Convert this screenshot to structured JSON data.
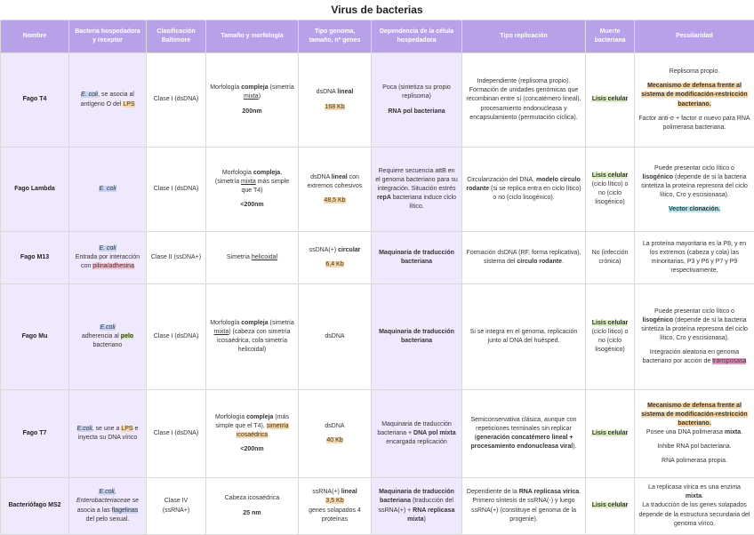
{
  "title": "Virus de bacterias",
  "headers": {
    "nombre": "Nombre",
    "bacteria": "Bacteria hospedadora y receptor",
    "clasificacion": "Clasificación Baltimore",
    "tamano": "Tamaño y morfología",
    "genoma": "Tipo genoma, tamaño, nº genes",
    "dependencia": "Dependencia de la célula hospedadora",
    "replicacion": "Tipo replicación",
    "muerte": "Muerte bacteriana",
    "peculiaridad": "Peculiaridad"
  },
  "t4": {
    "name": "Fago T4",
    "host_ecoli": "E. coli",
    "host_mid": ", se asocia al antígeno O del ",
    "host_lps": "LPS",
    "class": "Clase I (dsDNA)",
    "morph_a": "Morfología ",
    "morph_b": "compleja",
    "morph_c": " (simetría ",
    "morph_d": "mixta",
    "morph_e": ")",
    "size": "200nm",
    "genome_a": "dsDNA ",
    "genome_b": "lineal",
    "genome_size": "168 Kb",
    "dep_a": "Poca (sintetiza su propio replisoma)",
    "dep_b": "RNA pol bacteriana",
    "rep": "Independiente (replisoma propio). Formación de unidades genómicas que recombinan entre sí (concatémero lineal), procesamiento endonucleasa y encapsulamiento (permutación cíclica).",
    "death": "Lisis celular",
    "pec_a": "Replisoma propio.",
    "pec_b": "Mecanismo de defensa frente al sistema de modificación-restricción bacteriano.",
    "pec_c": "Factor anti-σ + factor σ nuevo para RNA polimerasa bacteriana."
  },
  "lambda": {
    "name": "Fago Lambda",
    "host_ecoli": "E. coli",
    "class": "Clase I (dsDNA)",
    "morph_a": "Morfología ",
    "morph_b": "compleja",
    "morph_c": ", (simetría ",
    "morph_d": "mixta",
    "morph_e": " más simple que T4)",
    "size": "<200nm",
    "genome_a": "dsDNA ",
    "genome_b": "lineal",
    "genome_c": " con extremos cohesivos",
    "genome_size": "48,5 Kb",
    "dep_a": "Requiere secuencia attB en el genoma bacteriano para su integración. Situación estrés ",
    "dep_b": "repA",
    "dep_c": " bacteriana induce ciclo lítico.",
    "rep_a": "Circularización del DNA, ",
    "rep_b": "modelo círculo rodante",
    "rep_c": " (si se replica entra en ciclo lítico) o no (ciclo lisogénico).",
    "death_a": "Lisis celular",
    "death_b": " (ciclo lítico) o no (ciclo lisogénico)",
    "pec_a": "Puede presentar ciclo lítico o ",
    "pec_b": "lisogénico",
    "pec_c": " (depende de si la bacteria sintetiza la proteína represora del ciclo lítico, Cro y escisionasa).",
    "pec_d": "Vector clonación."
  },
  "m13": {
    "name": "Fago M13",
    "host_ecoli": "E. coli",
    "host_a": "Entrada por interacción con ",
    "host_b": "pilina/adhesina",
    "class": "Clase II (ssDNA+)",
    "morph_a": "Simetría ",
    "morph_b": "helicoidal",
    "genome_a": "ssDNA(+) ",
    "genome_b": "circular",
    "genome_size": "6,4 Kb",
    "dep": "Maquinaria de traducción bacteriana",
    "rep_a": "Formación dsDNA (RF, forma replicativa), sistema del ",
    "rep_b": "círculo rodante",
    "rep_c": ".",
    "death": "No (infección crónica)",
    "pec": "La proteína mayoritaria es la P8, y en los extremos (cabeza y cola) las minoritarias, P3 y P6 y P7 y P9 respectivamente."
  },
  "mu": {
    "name": "Fago Mu",
    "host_ecoli": "E.coli",
    "host_a": "adherencia al ",
    "host_b": "pelo",
    "host_c": " bacteriano",
    "class": "Clase I (dsDNA)",
    "morph_a": "Morfología ",
    "morph_b": "compleja",
    "morph_c": " (simetría ",
    "morph_d": "mixta",
    "morph_e": ") (cabeza con simetría icosaédrica, cola simetría helicoidal)",
    "genome": "dsDNA",
    "dep": "Maquinaria de traducción bacteriana",
    "rep": "Si se integra en el genoma, replicación junto al DNA del huésped.",
    "death_a": "Lisis celular",
    "death_b": " (ciclo lítico) o no (ciclo lisogénico)",
    "pec_a": "Puede presentar ciclo lítico o ",
    "pec_b": "lisogénico",
    "pec_c": " (depende de si la bacteria sintetiza la proteína represora del ciclo lítico, Cro y escisionasa).",
    "pec_d": "Integración aleatoria en genoma bacteriano por acción de ",
    "pec_e": "transposasa"
  },
  "t7": {
    "name": "Fago T7",
    "host_ecoli": "E.coli",
    "host_a": ", se une a ",
    "host_b": "LPS",
    "host_c": " e inyecta su DNA vírico",
    "class": "Clase I (dsDNA)",
    "morph_a": "Morfología ",
    "morph_b": "compleja",
    "morph_c": " (más simple que el T4), ",
    "morph_d": "simetría icosaédrica",
    "size": "<200nm",
    "genome": "dsDNA",
    "genome_size": "40 Kb",
    "dep_a": "Maquinaria de traducción bacteriana + ",
    "dep_b": "DNA pol mixta",
    "dep_c": " encargada replicación",
    "rep_a": "Semiconservativa clásica, aunque con repeticiones terminales sin replicar (",
    "rep_b": "generación concatémero lineal + procesamiento endonucleasa viral",
    "rep_c": ").",
    "death": "Lisis celular",
    "pec_a": "Mecanismo de defensa frente al sistema de modificación-restricción bacteriano.",
    "pec_b": "Posee una DNA polimerasa ",
    "pec_c": "mixta",
    "pec_d": ".",
    "pec_e": "Inhibe RNA pol bacteriana.",
    "pec_f": "RNA polimerasa propia."
  },
  "ms2": {
    "name": "Bacteriófago MS2",
    "host_ecoli": "E.coli",
    "host_a": ", ",
    "host_b": "Enterobacteriaceae",
    "host_c": " se asocia a las ",
    "host_d": "flagelinas",
    "host_e": " del pelo sexual.",
    "class": "Clase IV (ssRNA+)",
    "morph": "Cabeza icosaédrica",
    "size": "25 nm",
    "genome_a": "ssRNA(+) ",
    "genome_b": "lineal",
    "genome_size": "3,5 Kb",
    "genome_c": "genes solapados 4 proteínas",
    "dep_a": "Maquinaria de traducción bacteriana",
    "dep_b": " (traducción del ssRNA(+) + ",
    "dep_c": "RNA replicasa mixta",
    "dep_d": ")",
    "rep_a": "Dependiente de la ",
    "rep_b": "RNA replicasa vírica",
    "rep_c": ". Primero síntesis de ssRNA(-) y luego ssRNA(+) (constituye el genoma de la progenie).",
    "death": "Lisis celular",
    "pec_a": "La replicasa vírica es una enzima ",
    "pec_b": "mixta",
    "pec_c": ".",
    "pec_d": "La traducción de los genes solapados depende de la estructura secundaria del genoma vírico."
  },
  "colors": {
    "header": "#b9a1ea",
    "first_cols": "#f0e8fd",
    "hl_blue": "#c8d4f5",
    "hl_orange": "#f9d8a8",
    "hl_pink": "#f4c0cf",
    "hl_green": "#d9f1b8",
    "hl_cyan": "#b6eaf1",
    "hl_magenta": "#e594be"
  }
}
